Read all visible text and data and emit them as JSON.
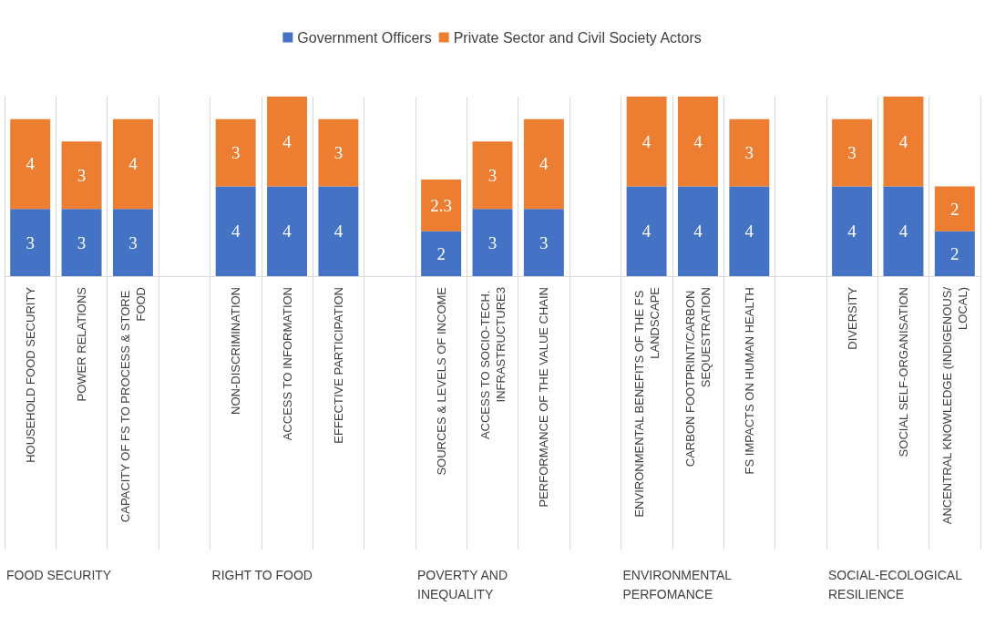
{
  "chart_data": {
    "type": "bar",
    "stacked": true,
    "data_labels": true,
    "legend": "top",
    "grid": "x",
    "categories": [
      "HOUSEHOLD FOOD SECURITY",
      "POWER RELATIONS",
      "CAPACITY OF FS TO PROCESS & STORE FOOD",
      null,
      "NON-DISCRIMINATION",
      "ACCESS TO INFORMATION",
      "EFFECTIVE PARTICIPATION",
      null,
      "SOURCES & LEVELS OF INCOME",
      "ACCESS TO SOCIO-TECH. INFRASTRUCTURE3",
      "PERFORMANCE OF THE VALUE CHAIN",
      null,
      "ENVIRONMENTAL BENEFITS OF THE FS LANDSCAPE",
      "CARBON FOOTPRINT/CARBON SEQUESTRATION",
      "FS IMPACTS ON HUMAN HEALTH",
      null,
      "DIVERSITY",
      "SOCIAL SELF-ORGANISATION",
      "ANCENTRAL KNOWLEDGE (INDIGENOUS/LOCAL)"
    ],
    "series": [
      {
        "name": "Government Officers",
        "color": "#4472c4",
        "values": [
          3,
          3,
          3,
          null,
          4,
          4,
          4,
          null,
          2,
          3,
          3,
          null,
          4,
          4,
          4,
          null,
          4,
          4,
          2
        ]
      },
      {
        "name": "Private Sector and Civil Society Actors",
        "color": "#ed7d31",
        "values": [
          4,
          3,
          4,
          null,
          3,
          4,
          3,
          null,
          2.3,
          3,
          4,
          null,
          4,
          4,
          3,
          null,
          3,
          4,
          2
        ]
      }
    ],
    "annotations": [
      "FOOD SECURITY",
      "RIGHT TO FOOD",
      "POVERTY AND INEQUALITY",
      "ENVIRONMENTAL PERFOMANCE",
      "SOCIAL-ECOLOGICAL RESILIENCE"
    ]
  }
}
